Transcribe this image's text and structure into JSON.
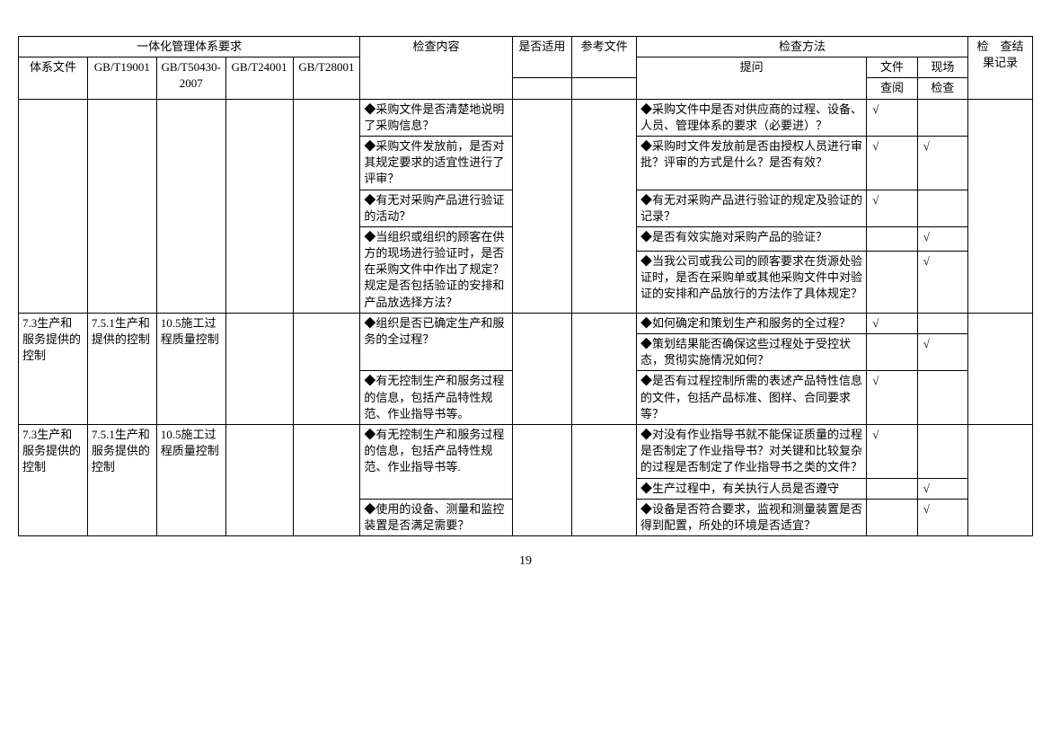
{
  "header": {
    "system_req": "一体化管理体系要求",
    "system_file": "体系文件",
    "gb19001": "GB/T19001",
    "gb50430": "GB/T50430-2007",
    "gb24001": "GB/T24001",
    "gb28001": "GB/T28001",
    "check_content": "检查内容",
    "is_apply": "是否适用",
    "ref_file": "参考文件",
    "check_method": "检查方法",
    "question": "提问",
    "file_review": "文件查阅",
    "site_check": "现场检查",
    "check_result": "检　查结果记录"
  },
  "rows": [
    {
      "c0": "",
      "c1": "",
      "c2": "",
      "c3": "",
      "c4": "",
      "content": "◆采购文件是否清楚地说明了采购信息？",
      "q": "◆采购文件中是否对供应商的过程、设备、人员、管理体系的要求（必要进）？",
      "f": "√",
      "s": ""
    },
    {
      "c0": "",
      "c1": "",
      "c2": "",
      "c3": "",
      "c4": "",
      "content": "◆采购文件发放前，是否对其规定要求的适宜性进行了评审？",
      "q": "◆采购时文件发放前是否由授权人员进行审批？评审的方式是什么？是否有效？",
      "f": "√",
      "s": "√"
    },
    {
      "c0": "",
      "c1": "",
      "c2": "",
      "c3": "",
      "c4": "",
      "content": "◆有无对采购产品进行验证的活动？",
      "q": "◆有无对采购产品进行验证的规定及验证的记录？",
      "f": "√",
      "s": ""
    },
    {
      "c0": "",
      "c1": "",
      "c2": "",
      "c3": "",
      "c4": "",
      "content": "◆当组织或组织的顾客在供方的现场进行验证时，是否在采购文件中作出了规定？规定是否包括验证的安排和产品放选择方法？",
      "q": "◆是否有效实施对采购产品的验证？",
      "f": "",
      "s": "√"
    },
    {
      "c0": "",
      "c1": "",
      "c2": "",
      "c3": "",
      "c4": "",
      "content": "",
      "q": "◆当我公司或我公司的顾客要求在货源处验证时，是否在采购单或其他采购文件中对验证的安排和产品放行的方法作了具体规定？",
      "f": "",
      "s": "√"
    },
    {
      "c0": "7.3生产和服务提供的控制",
      "c1": "7.5.1生产和提供的控制",
      "c2": "10.5施工过程质量控制",
      "c3": "",
      "c4": "",
      "content": "◆组织是否已确定生产和服务的全过程？",
      "q": "◆如何确定和策划生产和服务的全过程？",
      "f": "√",
      "s": ""
    },
    {
      "c0": "",
      "c1": "",
      "c2": "",
      "c3": "",
      "c4": "",
      "content": "",
      "q": "◆策划结果能否确保这些过程处于受控状态，贯彻实施情况如何？",
      "f": "",
      "s": "√"
    },
    {
      "c0": "",
      "c1": "",
      "c2": "",
      "c3": "",
      "c4": "",
      "content": "◆有无控制生产和服务过程的信息，包括产品特性规范、作业指导书等。",
      "q": "◆是否有过程控制所需的表述产品特性信息的文件，包括产品标准、图样、合同要求等？",
      "f": "√",
      "s": ""
    },
    {
      "c0": "7.3生产和服务提供的控制",
      "c1": "7.5.1生产和服务提供的控制",
      "c2": "10.5施工过程质量控制",
      "c3": "",
      "c4": "",
      "content": "◆有无控制生产和服务过程的信息，包括产品特性规范、作业指导书等.",
      "q": "◆对没有作业指导书就不能保证质量的过程是否制定了作业指导书？对关键和比较复杂的过程是否制定了作业指导书之类的文件？",
      "f": "√",
      "s": ""
    },
    {
      "c0": "",
      "c1": "",
      "c2": "",
      "c3": "",
      "c4": "",
      "content": "",
      "q": "◆生产过程中，有关执行人员是否遵守",
      "f": "",
      "s": "√"
    },
    {
      "c0": "",
      "c1": "",
      "c2": "",
      "c3": "",
      "c4": "",
      "content": "◆使用的设备、测量和监控装置是否满足需要？",
      "q": "◆设备是否符合要求，监视和测量装置是否得到配置，所处的环境是否适宜？",
      "f": "",
      "s": "√"
    }
  ],
  "page_number": "19",
  "colwidths": {
    "c0": "75",
    "c1": "75",
    "c2": "75",
    "c3": "73",
    "c4": "73",
    "content": "165",
    "apply": "65",
    "ref": "70",
    "q": "250",
    "f": "55",
    "s": "55",
    "result": "70"
  }
}
